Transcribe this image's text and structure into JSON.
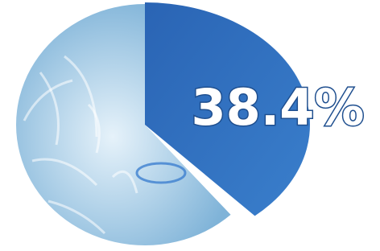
{
  "chart_data": {
    "type": "pie",
    "values": [
      38.4,
      61.6
    ],
    "value_labels": [
      "38.4%",
      null
    ],
    "colors": [
      "#2f6fbd",
      "#bcd8ea"
    ]
  }
}
